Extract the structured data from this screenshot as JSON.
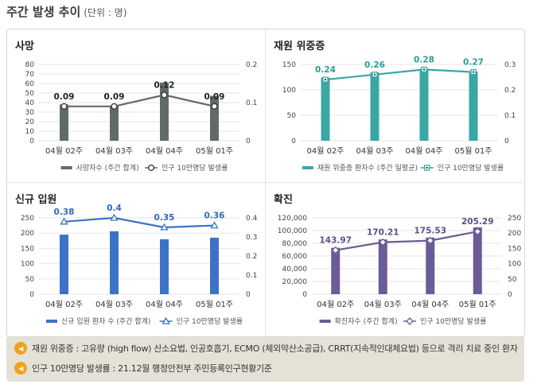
{
  "header": {
    "title": "주간 발생 추이",
    "unit": "(단위 : 명)"
  },
  "chart_data": [
    {
      "id": "deaths",
      "type": "bar",
      "title": "사망",
      "categories": [
        "04월 02주",
        "04월 03주",
        "04월 04주",
        "05월 01주"
      ],
      "ylim": [
        0,
        80
      ],
      "yticks": [
        0,
        10,
        20,
        30,
        40,
        50,
        60,
        70,
        80
      ],
      "y2lim": [
        0,
        0.2
      ],
      "y2ticks": [
        "0",
        "0.1",
        "0.2"
      ],
      "bar_color": "#606b69",
      "line_color": "#606b69",
      "marker": "circle",
      "series": [
        {
          "name": "사망자수 (주간 합계)",
          "values": [
            38,
            37,
            61,
            47
          ]
        },
        {
          "name": "인구 10만명당 발생률",
          "values": [
            0.09,
            0.09,
            0.12,
            0.09
          ],
          "labels": [
            "0.09",
            "0.09",
            "0.12",
            "0.09"
          ]
        }
      ],
      "label_color": "#222222"
    },
    {
      "id": "critical",
      "type": "bar",
      "title": "재원 위중증",
      "categories": [
        "04월 02주",
        "04월 03주",
        "04월 04주",
        "05월 01주"
      ],
      "ylim": [
        0,
        150
      ],
      "yticks": [
        0,
        50,
        100,
        150
      ],
      "y2lim": [
        0,
        0.3
      ],
      "y2ticks": [
        "0",
        "0.1",
        "0.2",
        "0.3"
      ],
      "bar_color": "#3aa7a4",
      "line_color": "#3aa7a4",
      "marker": "square",
      "series": [
        {
          "name": "재원 위중증 환자수 (주간 일평균)",
          "values": [
            124,
            134,
            141,
            136
          ]
        },
        {
          "name": "인구 10만명당 발생률",
          "values": [
            0.24,
            0.26,
            0.28,
            0.27
          ],
          "labels": [
            "0.24",
            "0.26",
            "0.28",
            "0.27"
          ]
        }
      ],
      "label_color": "#2b9c99"
    },
    {
      "id": "admissions",
      "type": "bar",
      "title": "신규 입원",
      "categories": [
        "04월 02주",
        "04월 03주",
        "04월 04주",
        "05월 01주"
      ],
      "ylim": [
        0,
        250
      ],
      "yticks": [
        0,
        50,
        100,
        150,
        200,
        250
      ],
      "y2lim": [
        0,
        0.4
      ],
      "y2ticks": [
        "0",
        "0.1",
        "0.2",
        "0.3",
        "0.4"
      ],
      "bar_color": "#3c73c6",
      "line_color": "#3c73c6",
      "marker": "triangle",
      "series": [
        {
          "name": "신규 입원 환자 수 (주간 합계)",
          "values": [
            195,
            206,
            180,
            185
          ]
        },
        {
          "name": "인구 10만명당 발생률",
          "values": [
            0.38,
            0.4,
            0.35,
            0.36
          ],
          "labels": [
            "0.38",
            "0.4",
            "0.35",
            "0.36"
          ]
        }
      ],
      "label_color": "#2f68bd"
    },
    {
      "id": "confirmed",
      "type": "bar",
      "title": "확진",
      "categories": [
        "04월 02주",
        "04월 03주",
        "04월 04주",
        "05월 01주"
      ],
      "ylim": [
        0,
        120000
      ],
      "yticks": [
        "0",
        "20,000",
        "40,000",
        "60,000",
        "80,000",
        "100,000",
        "120,000"
      ],
      "y2lim": [
        0,
        250
      ],
      "y2ticks": [
        "0",
        "50",
        "100",
        "150",
        "200",
        "250"
      ],
      "bar_color": "#6b5b96",
      "line_color": "#6b5b96",
      "marker": "diamond",
      "series": [
        {
          "name": "확진자수 (주간 합계)",
          "values": [
            73000,
            86000,
            89000,
            105000
          ]
        },
        {
          "name": "인구 10만명당 발생률",
          "values": [
            143.97,
            170.21,
            175.53,
            205.29
          ],
          "labels": [
            "143.97",
            "170.21",
            "175.53",
            "205.29"
          ]
        }
      ],
      "label_color": "#5e4f8a"
    }
  ],
  "notes": [
    {
      "icon": "speaker-icon",
      "text": "재원 위중증 : 고유량 (high flow) 산소요법, 인공호흡기, ECMO (체외막산소공급), CRRT(지속적인대체요법) 등으로 격리 치료 중인 환자"
    },
    {
      "icon": "speaker-icon",
      "text": "인구 10만명당 발생률 : 21.12월 행정안전부 주민등록인구현황기준"
    }
  ],
  "colors": {
    "note_icon": "#f2a11b",
    "notes_bg": "#e5e1d6"
  }
}
